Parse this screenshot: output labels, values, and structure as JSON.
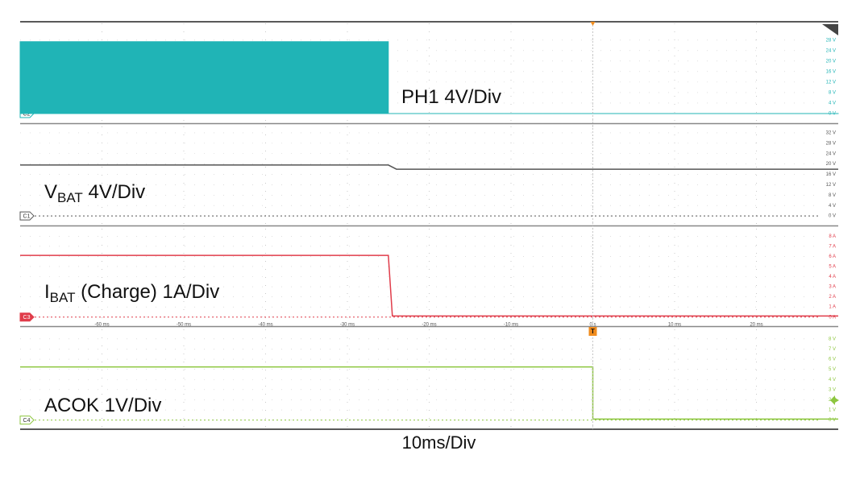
{
  "chart_data": [
    {
      "type": "area",
      "channel": "C2",
      "color": "#20b4b6",
      "label_parts": [
        {
          "text": "PH1 4V/Div"
        }
      ],
      "xlim": [
        -70,
        30
      ],
      "ylim": [
        -3.7,
        35
      ],
      "yticks": [
        {
          "value": 0,
          "label": "0 V"
        },
        {
          "value": 4,
          "label": "4 V"
        },
        {
          "value": 8,
          "label": "8 V"
        },
        {
          "value": 12,
          "label": "12 V"
        },
        {
          "value": 16,
          "label": "16 V"
        },
        {
          "value": 20,
          "label": "20 V"
        },
        {
          "value": 24,
          "label": "24 V"
        },
        {
          "value": 28,
          "label": "28 V"
        }
      ],
      "x": [
        -70,
        -25,
        -25,
        30
      ],
      "values": [
        27.4,
        27.4,
        0,
        0
      ]
    },
    {
      "type": "line",
      "channel": "C1",
      "color": "#555555",
      "label_parts": [
        {
          "text": "V"
        },
        {
          "text": "BAT",
          "sub": true
        },
        {
          "text": " 4V/Div"
        }
      ],
      "xlim": [
        -70,
        30
      ],
      "ylim": [
        -3.7,
        35.1
      ],
      "yticks": [
        {
          "value": 0,
          "label": "0 V"
        },
        {
          "value": 4,
          "label": "4 V"
        },
        {
          "value": 8,
          "label": "8 V"
        },
        {
          "value": 12,
          "label": "12 V"
        },
        {
          "value": 16,
          "label": "16 V"
        },
        {
          "value": 20,
          "label": "20 V"
        },
        {
          "value": 24,
          "label": "24 V"
        },
        {
          "value": 28,
          "label": "28 V"
        },
        {
          "value": 32,
          "label": "32 V"
        }
      ],
      "x": [
        -70,
        -25,
        -24,
        30
      ],
      "values": [
        19.6,
        19.6,
        18,
        18
      ]
    },
    {
      "type": "line",
      "channel": "C3",
      "color": "#e03c4a",
      "label_parts": [
        {
          "text": "I"
        },
        {
          "text": "BAT",
          "sub": true
        },
        {
          "text": " (Charge) 1A/Div"
        }
      ],
      "xlim": [
        -70,
        30
      ],
      "ylim": [
        -0.9,
        8.9
      ],
      "yticks": [
        {
          "value": 0,
          "label": "0 A"
        },
        {
          "value": 1,
          "label": "1 A"
        },
        {
          "value": 2,
          "label": "2 A"
        },
        {
          "value": 3,
          "label": "3 A"
        },
        {
          "value": 4,
          "label": "4 A"
        },
        {
          "value": 5,
          "label": "5 A"
        },
        {
          "value": 6,
          "label": "6 A"
        },
        {
          "value": 7,
          "label": "7 A"
        },
        {
          "value": 8,
          "label": "8 A"
        }
      ],
      "xticks": [
        {
          "value": -60,
          "label": "-60 ms"
        },
        {
          "value": -50,
          "label": "-50 ms"
        },
        {
          "value": -40,
          "label": "-40 ms"
        },
        {
          "value": -30,
          "label": "-30 ms"
        },
        {
          "value": -20,
          "label": "-20 ms"
        },
        {
          "value": -10,
          "label": "-10 ms"
        },
        {
          "value": 0,
          "label": "0 s"
        },
        {
          "value": 10,
          "label": "10 ms"
        },
        {
          "value": 20,
          "label": "20 ms"
        }
      ],
      "x": [
        -70,
        -25,
        -24.5,
        30
      ],
      "values": [
        6.1,
        6.1,
        0.1,
        0.1
      ]
    },
    {
      "type": "line",
      "channel": "C4",
      "color": "#8dc63f",
      "label_parts": [
        {
          "text": "ACOK 1V/Div"
        }
      ],
      "xlim": [
        -70,
        30
      ],
      "ylim": [
        -0.9,
        9.1
      ],
      "yticks": [
        {
          "value": 0,
          "label": "0 V"
        },
        {
          "value": 1,
          "label": "1 V"
        },
        {
          "value": 2,
          "label": "2 V"
        },
        {
          "value": 3,
          "label": "3 V"
        },
        {
          "value": 4,
          "label": "4 V"
        },
        {
          "value": 5,
          "label": "5 V"
        },
        {
          "value": 6,
          "label": "6 V"
        },
        {
          "value": 7,
          "label": "7 V"
        },
        {
          "value": 8,
          "label": "8 V"
        }
      ],
      "x": [
        -70,
        0,
        0,
        30
      ],
      "values": [
        5.24,
        5.24,
        0.1,
        0.1
      ],
      "xlabel": "10ms/Div",
      "trigger": {
        "label": "T",
        "x": 0
      }
    }
  ]
}
